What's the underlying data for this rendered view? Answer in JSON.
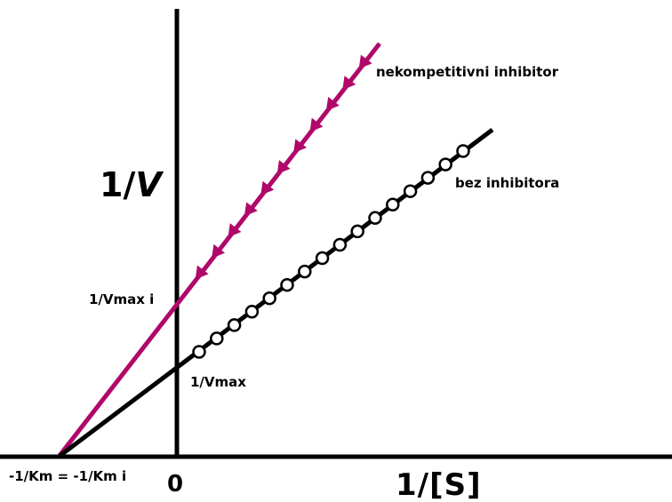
{
  "colors": {
    "inhibitor_line": "#b0086a",
    "control_line": "#000000",
    "axis": "#000000",
    "marker_fill": "#ffffff"
  },
  "labels": {
    "y_axis_prefix": "1/",
    "y_axis_var": "V",
    "x_axis": "1/[S]",
    "origin": "0",
    "x_intercept": "-1/Km = -1/Km i",
    "vmax_i": "1/Vmax i",
    "vmax": "1/Vmax",
    "line_inhibitor": "nekompetitivni inhibitor",
    "line_control": "bez inhibitora"
  },
  "series": [
    {
      "key": "inhibitor",
      "name": "nekompetitivni inhibitor",
      "marker": "triangle-down",
      "marker_count": 11,
      "color": "#b0086a"
    },
    {
      "key": "control",
      "name": "bez inhibitora",
      "marker": "open-circle",
      "marker_count": 16,
      "color": "#000000"
    }
  ]
}
